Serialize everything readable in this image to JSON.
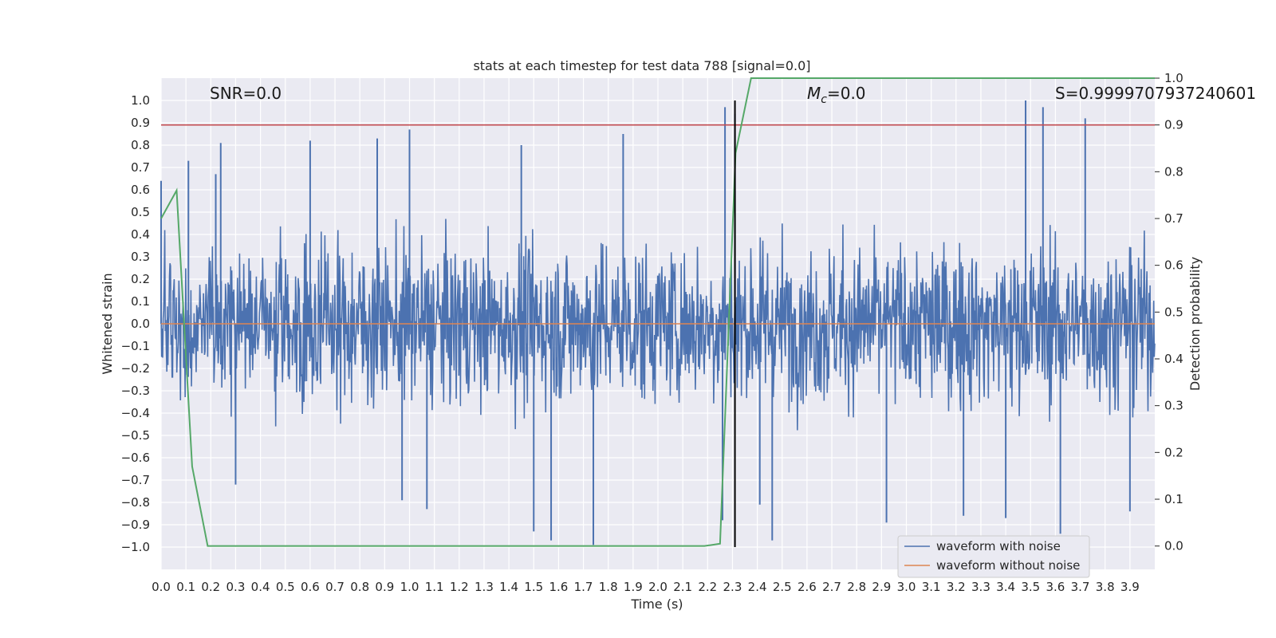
{
  "chart_data": {
    "type": "line",
    "title": "stats at each timestep for test data 788 [signal=0.0]",
    "xlabel": "Time (s)",
    "ylabel_left": "Whitened strain",
    "ylabel_right": "Detection probability",
    "xlim": [
      0.0,
      4.0
    ],
    "ylim_left": [
      -1.1,
      1.1
    ],
    "ylim_right": [
      -0.05,
      1.0
    ],
    "grid": true,
    "background": "#eaeaf2",
    "x_ticks": [
      "0.0",
      "0.1",
      "0.2",
      "0.3",
      "0.4",
      "0.5",
      "0.6",
      "0.7",
      "0.8",
      "0.9",
      "1.0",
      "1.1",
      "1.2",
      "1.3",
      "1.4",
      "1.5",
      "1.6",
      "1.7",
      "1.8",
      "1.9",
      "2.0",
      "2.1",
      "2.2",
      "2.3",
      "2.4",
      "2.5",
      "2.6",
      "2.7",
      "2.8",
      "2.9",
      "3.0",
      "3.1",
      "3.2",
      "3.3",
      "3.4",
      "3.5",
      "3.6",
      "3.7",
      "3.8",
      "3.9"
    ],
    "y_ticks_left": [
      "1.0",
      "0.9",
      "0.8",
      "0.7",
      "0.6",
      "0.5",
      "0.4",
      "0.3",
      "0.2",
      "0.1",
      "0.0",
      "−0.1",
      "−0.2",
      "−0.3",
      "−0.4",
      "−0.5",
      "−0.6",
      "−0.7",
      "−0.8",
      "−0.9",
      "−1.0"
    ],
    "y_ticks_right": [
      "1.0",
      "0.9",
      "0.8",
      "0.7",
      "0.6",
      "0.5",
      "0.4",
      "0.3",
      "0.2",
      "0.1",
      "0.0"
    ],
    "annotations": {
      "snr": "SNR=0.0",
      "mc": "M",
      "mc_sub": "c",
      "mc_value": "=0.0",
      "s": "S=0.9999707937240601"
    },
    "legend": {
      "placement": "lower-right",
      "entries": [
        "waveform with noise",
        "waveform without noise"
      ]
    },
    "series": [
      {
        "name": "waveform with noise",
        "axis": "left",
        "color": "#4c72b0",
        "note_kind": "noise",
        "peaks": [
          [
            0.0,
            0.64
          ],
          [
            0.11,
            0.73
          ],
          [
            0.22,
            0.67
          ],
          [
            0.24,
            0.81
          ],
          [
            0.6,
            0.82
          ],
          [
            0.87,
            0.83
          ],
          [
            1.0,
            0.87
          ],
          [
            1.45,
            0.8
          ],
          [
            1.86,
            0.85
          ],
          [
            2.27,
            0.97
          ],
          [
            2.31,
            0.94
          ],
          [
            3.48,
            1.0
          ],
          [
            3.55,
            0.97
          ],
          [
            3.72,
            0.92
          ],
          [
            0.3,
            -0.72
          ],
          [
            0.97,
            -0.79
          ],
          [
            1.07,
            -0.83
          ],
          [
            1.5,
            -0.93
          ],
          [
            1.57,
            -0.97
          ],
          [
            1.74,
            -0.99
          ],
          [
            2.26,
            -0.88
          ],
          [
            2.41,
            -0.81
          ],
          [
            2.46,
            -0.97
          ],
          [
            2.92,
            -0.89
          ],
          [
            3.23,
            -0.86
          ],
          [
            3.4,
            -0.87
          ],
          [
            3.62,
            -0.94
          ],
          [
            3.9,
            -0.84
          ]
        ]
      },
      {
        "name": "waveform without noise",
        "axis": "left",
        "color": "#dd8452",
        "x": [
          0.0,
          4.0
        ],
        "y": [
          0.0,
          0.0
        ]
      },
      {
        "name": "detection probability",
        "axis": "right",
        "color": "#55a868",
        "x": [
          0.0,
          0.0625,
          0.125,
          0.1875,
          0.25,
          0.5,
          1.0,
          1.5,
          2.0,
          2.1875,
          2.25,
          2.3125,
          2.375,
          2.4375,
          3.0,
          3.5,
          4.0
        ],
        "y": [
          0.7,
          0.76,
          0.17,
          0.0,
          0.0,
          0.0,
          0.0,
          0.0,
          0.0,
          0.0,
          0.005,
          0.84,
          1.0,
          1.0,
          1.0,
          1.0,
          1.0
        ]
      }
    ],
    "reference_lines": [
      {
        "kind": "horizontal",
        "axis": "right",
        "value": 0.9,
        "color": "#c44e52"
      },
      {
        "kind": "vertical",
        "x": 2.31,
        "color": "#000000"
      }
    ]
  }
}
